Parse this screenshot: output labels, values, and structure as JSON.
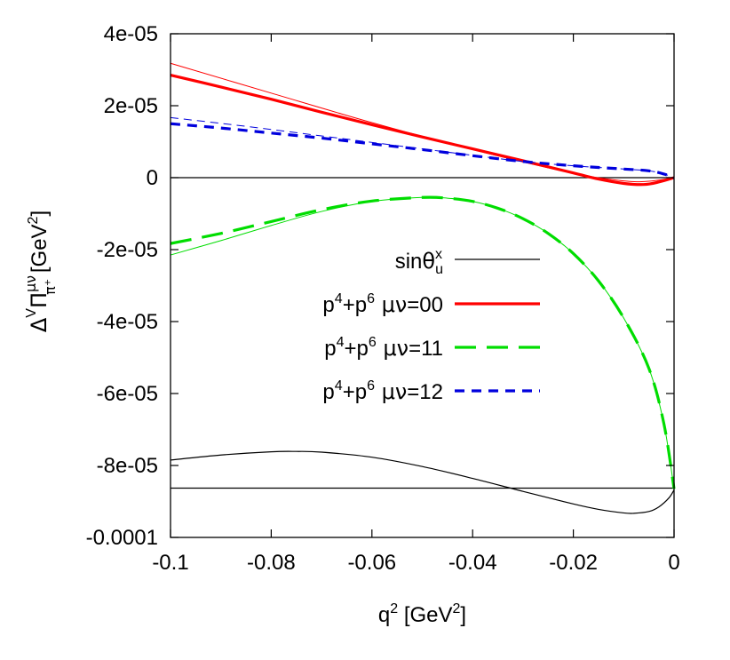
{
  "chart_data": {
    "type": "line",
    "xlabel": "q",
    "xlabel_sup": "2",
    "xlabel_unit": " [GeV",
    "xlabel_unit_sup": "2",
    "xlabel_close": "]",
    "ylabel": {
      "delta": "Δ",
      "v": "V",
      "pi": "Π",
      "munu": "μν",
      "sub": "π⁺",
      "unit": " [GeV",
      "unit_sup": "2",
      "close": "]"
    },
    "xlim": [
      -0.1,
      0
    ],
    "ylim": [
      -0.0001,
      4e-05
    ],
    "xticks": [
      -0.1,
      -0.08,
      -0.06,
      -0.04,
      -0.02,
      0
    ],
    "xtick_labels": [
      "-0.1",
      "-0.08",
      "-0.06",
      "-0.04",
      "-0.02",
      "0"
    ],
    "yticks": [
      -0.0001,
      -8e-05,
      -6e-05,
      -4e-05,
      -2e-05,
      0,
      2e-05,
      4e-05
    ],
    "ytick_labels": [
      "-0.0001",
      "-8e-05",
      "-6e-05",
      "-4e-05",
      "-2e-05",
      "0",
      "2e-05",
      "4e-05"
    ],
    "legend_position": "center-right",
    "legend": [
      {
        "pre": "sin",
        "theta": "θ",
        "sub": "u",
        "sup": "x",
        "color": "#000000",
        "style": "solid",
        "width": 1.2
      },
      {
        "p": "p",
        "s4": "4",
        "plus": "+p",
        "s6": "6",
        "munu": " μν",
        "val": "=00",
        "color": "#ff0000",
        "style": "solid",
        "width": 3.2
      },
      {
        "p": "p",
        "s4": "4",
        "plus": "+p",
        "s6": "6",
        "munu": " μν",
        "val": "=11",
        "color": "#00dd00",
        "style": "longdash",
        "width": 3.2
      },
      {
        "p": "p",
        "s4": "4",
        "plus": "+p",
        "s6": "6",
        "munu": " μν",
        "val": "=12",
        "color": "#0000dd",
        "style": "shortdash",
        "width": 3.2
      }
    ],
    "series": [
      {
        "legend_index": 0,
        "role": "shape",
        "color": "#000000",
        "width": 1.2,
        "dash": "",
        "x": [
          -0.1,
          -0.09,
          -0.08,
          -0.075,
          -0.07,
          -0.06,
          -0.05,
          -0.04,
          -0.03,
          -0.02,
          -0.015,
          -0.01,
          -0.008,
          -0.005,
          -0.003,
          -0.001,
          0
        ],
        "y": [
          -7.85e-05,
          -7.71e-05,
          -7.62e-05,
          -7.61e-05,
          -7.63e-05,
          -7.77e-05,
          -8.03e-05,
          -8.36e-05,
          -8.72e-05,
          -9.07e-05,
          -9.22e-05,
          -9.32e-05,
          -9.33e-05,
          -9.28e-05,
          -9.15e-05,
          -8.9e-05,
          -8.68e-05
        ]
      },
      {
        "role": "reference",
        "color": "#000000",
        "width": 1.2,
        "dash": "",
        "x": [
          -0.1,
          0
        ],
        "y": [
          -8.63e-05,
          -8.63e-05
        ]
      },
      {
        "role": "zero",
        "color": "#000000",
        "width": 1.2,
        "dash": "",
        "x": [
          -0.1,
          0
        ],
        "y": [
          0,
          0
        ]
      },
      {
        "legend_index": 1,
        "color": "#ff0000",
        "width": 3.2,
        "dash": "",
        "x": [
          -0.1,
          -0.09,
          -0.08,
          -0.07,
          -0.06,
          -0.05,
          -0.04,
          -0.03,
          -0.02,
          -0.015,
          -0.01,
          -0.006,
          -0.003,
          0
        ],
        "y": [
          2.85e-05,
          2.52e-05,
          2.18e-05,
          1.82e-05,
          1.47e-05,
          1.13e-05,
          8e-06,
          4.7e-06,
          1.3e-06,
          -4e-07,
          -1.6e-06,
          -1.9e-06,
          -1.2e-06,
          0
        ]
      },
      {
        "role": "thin",
        "color": "#ff0000",
        "width": 1,
        "dash": "",
        "x": [
          -0.1,
          -0.08,
          -0.06,
          -0.04,
          -0.02,
          -0.01,
          -0.005,
          0
        ],
        "y": [
          3.18e-05,
          2.35e-05,
          1.53e-05,
          7.8e-06,
          1.2e-06,
          -9e-07,
          -1e-06,
          0
        ]
      },
      {
        "legend_index": 2,
        "color": "#00dd00",
        "width": 3.2,
        "dash": "24 12",
        "x": [
          -0.1,
          -0.09,
          -0.08,
          -0.07,
          -0.06,
          -0.05,
          -0.045,
          -0.04,
          -0.035,
          -0.03,
          -0.025,
          -0.02,
          -0.015,
          -0.01,
          -0.005,
          -0.002,
          0
        ],
        "y": [
          -1.83e-05,
          -1.55e-05,
          -1.22e-05,
          -8.9e-06,
          -6.5e-06,
          -5.5e-06,
          -5.7e-06,
          -6.6e-06,
          -8.5e-06,
          -1.14e-05,
          -1.55e-05,
          -2.11e-05,
          -2.87e-05,
          -3.9e-05,
          -5.3e-05,
          -6.85e-05,
          -8.65e-05
        ]
      },
      {
        "role": "thin",
        "color": "#00dd00",
        "width": 1,
        "dash": "",
        "x": [
          -0.1,
          -0.09,
          -0.08,
          -0.07,
          -0.06,
          -0.05,
          -0.045,
          -0.04,
          -0.035,
          -0.03,
          -0.025,
          -0.02,
          -0.015,
          -0.01,
          -0.005,
          -0.002,
          0
        ],
        "y": [
          -2.15e-05,
          -1.75e-05,
          -1.33e-05,
          -9.4e-06,
          -6.6e-06,
          -5.5e-06,
          -5.7e-06,
          -6.6e-06,
          -8.5e-06,
          -1.14e-05,
          -1.55e-05,
          -2.11e-05,
          -2.87e-05,
          -3.9e-05,
          -5.3e-05,
          -6.85e-05,
          -8.65e-05
        ]
      },
      {
        "legend_index": 3,
        "color": "#0000dd",
        "width": 3.2,
        "dash": "11 8",
        "x": [
          -0.1,
          -0.09,
          -0.08,
          -0.07,
          -0.06,
          -0.05,
          -0.04,
          -0.03,
          -0.02,
          -0.01,
          -0.005,
          -0.002,
          0
        ],
        "y": [
          1.5e-05,
          1.38e-05,
          1.24e-05,
          1.1e-05,
          9.4e-06,
          7.8e-06,
          6.1e-06,
          4.5e-06,
          3.3e-06,
          2.4e-06,
          1.9e-06,
          1e-06,
          0
        ]
      },
      {
        "role": "thin",
        "color": "#0000dd",
        "width": 1,
        "dash": "9 6",
        "x": [
          -0.1,
          -0.09,
          -0.08,
          -0.07,
          -0.06,
          -0.05,
          -0.04,
          -0.03,
          -0.02,
          -0.01,
          -0.005,
          -0.002,
          0
        ],
        "y": [
          1.67e-05,
          1.51e-05,
          1.34e-05,
          1.16e-05,
          9.8e-06,
          8e-06,
          6.2e-06,
          4.5e-06,
          3.3e-06,
          2.4e-06,
          1.9e-06,
          1e-06,
          0
        ]
      }
    ]
  }
}
